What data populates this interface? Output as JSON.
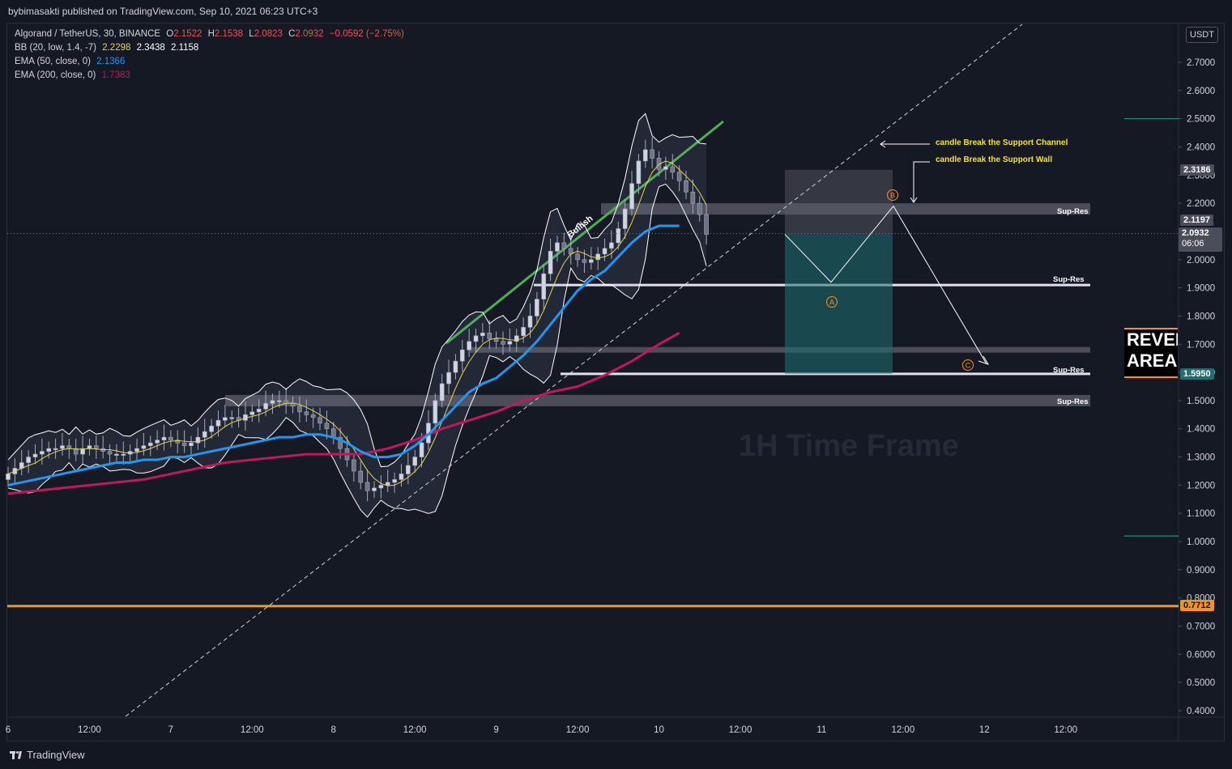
{
  "header": {
    "published": "bybimasakti published on TradingView.com, Sep 10, 2021 06:23 UTC+3"
  },
  "legend": {
    "symbol": "Algorand / TetherUS, 30, BINANCE",
    "o_label": "O",
    "o": "2.1522",
    "h_label": "H",
    "h": "2.1538",
    "l_label": "L",
    "l": "2.0823",
    "c_label": "C",
    "c": "2.0932",
    "change": "−0.0592 (−2.75%)",
    "bb_label": "BB (20, low, 1.4, -7)",
    "bb_vals": [
      "2.2298",
      "2.3438",
      "2.1158"
    ],
    "ema50_label": "EMA (50, close, 0)",
    "ema50_val": "2.1366",
    "ema200_label": "EMA (200, close, 0)",
    "ema200_val": "1.7383"
  },
  "currency": "USDT",
  "price_tags": {
    "top": "2.3186",
    "ema": "2.1197",
    "last": "2.0932",
    "countdown": "06:06",
    "support": "1.5950",
    "orange": "0.7712"
  },
  "rev_area": [
    "REVERSAL",
    "AREA"
  ],
  "annotations": {
    "channel": "candle Break the Support Channel",
    "wall": "candle Break the Support Wall",
    "bullish": "Bullish",
    "timeframe": "1H Time Frame",
    "supres": "Sup-Res",
    "wave_a": "A",
    "wave_b": "B",
    "wave_c": "C"
  },
  "footer": {
    "brand": "TradingView"
  },
  "colors": {
    "background": "#131722",
    "ema50": "#2196f3",
    "ema200": "#c2185b",
    "bb_basis": "#e6d55a",
    "bull_line": "#4caf50",
    "orange": "#f7931a",
    "teal": "#26a69a"
  },
  "chart_data": {
    "type": "candlestick",
    "symbol": "Algorand / TetherUS",
    "timeframe": "30",
    "exchange": "BINANCE",
    "y_axis": {
      "ticks": [
        "2.7000",
        "2.6000",
        "2.5000",
        "2.4000",
        "2.3000",
        "2.2000",
        "2.1000",
        "2.0000",
        "1.9000",
        "1.8000",
        "1.7000",
        "1.6000",
        "1.5000",
        "1.4000",
        "1.3000",
        "1.2000",
        "1.1000",
        "1.0000",
        "0.9000",
        "0.8000",
        "0.7000",
        "0.6000",
        "0.5000",
        "0.4000"
      ],
      "ylim": [
        0.37,
        2.82
      ]
    },
    "x_axis": {
      "ticks": [
        ":00",
        "6",
        "12:00",
        "7",
        "12:00",
        "8",
        "12:00",
        "9",
        "12:00",
        "10",
        "12:00",
        "11",
        "12:00",
        "12",
        "12:00"
      ],
      "tick_index": [
        -24,
        0,
        12,
        24,
        36,
        48,
        60,
        72,
        84,
        96,
        108,
        120,
        132,
        144,
        156
      ]
    },
    "close": [
      1.24,
      1.26,
      1.28,
      1.3,
      1.31,
      1.32,
      1.33,
      1.33,
      1.34,
      1.33,
      1.31,
      1.33,
      1.34,
      1.33,
      1.32,
      1.31,
      1.31,
      1.31,
      1.32,
      1.33,
      1.34,
      1.35,
      1.36,
      1.37,
      1.36,
      1.35,
      1.34,
      1.35,
      1.37,
      1.39,
      1.41,
      1.43,
      1.44,
      1.44,
      1.43,
      1.45,
      1.46,
      1.47,
      1.49,
      1.5,
      1.5,
      1.49,
      1.48,
      1.46,
      1.45,
      1.44,
      1.42,
      1.4,
      1.37,
      1.33,
      1.29,
      1.25,
      1.21,
      1.18,
      1.19,
      1.2,
      1.21,
      1.22,
      1.24,
      1.27,
      1.3,
      1.35,
      1.42,
      1.5,
      1.56,
      1.6,
      1.64,
      1.68,
      1.71,
      1.73,
      1.74,
      1.72,
      1.71,
      1.7,
      1.71,
      1.73,
      1.76,
      1.8,
      1.86,
      1.95,
      2.03,
      2.06,
      2.04,
      2.02,
      2.0,
      1.99,
      2.0,
      2.02,
      2.04,
      2.06,
      2.11,
      2.18,
      2.27,
      2.35,
      2.39,
      2.36,
      2.32,
      2.33,
      2.31,
      2.28,
      2.24,
      2.2,
      2.16,
      2.09
    ],
    "ema50": [
      1.2,
      1.21,
      1.22,
      1.23,
      1.24,
      1.25,
      1.26,
      1.27,
      1.28,
      1.28,
      1.29,
      1.29,
      1.3,
      1.3,
      1.31,
      1.32,
      1.33,
      1.34,
      1.35,
      1.36,
      1.37,
      1.37,
      1.38,
      1.38,
      1.37,
      1.35,
      1.32,
      1.3,
      1.3,
      1.31,
      1.34,
      1.38,
      1.43,
      1.48,
      1.53,
      1.56,
      1.58,
      1.62,
      1.66,
      1.71,
      1.77,
      1.83,
      1.89,
      1.93,
      1.96,
      2.01,
      2.06,
      2.1,
      2.12,
      2.12
    ],
    "ema50_index": [
      0,
      2,
      4,
      6,
      8,
      10,
      12,
      14,
      16,
      18,
      20,
      22,
      24,
      26,
      28,
      30,
      32,
      34,
      36,
      38,
      40,
      42,
      44,
      46,
      48,
      50,
      52,
      54,
      56,
      58,
      60,
      62,
      64,
      66,
      68,
      70,
      72,
      74,
      76,
      78,
      80,
      82,
      84,
      86,
      88,
      90,
      92,
      94,
      96,
      99
    ],
    "ema200": [
      1.17,
      1.18,
      1.19,
      1.2,
      1.21,
      1.22,
      1.24,
      1.26,
      1.28,
      1.29,
      1.3,
      1.31,
      1.31,
      1.31,
      1.33,
      1.36,
      1.4,
      1.43,
      1.46,
      1.5,
      1.53,
      1.55,
      1.59,
      1.64,
      1.7,
      1.74
    ],
    "ema200_index": [
      0,
      4,
      8,
      12,
      16,
      20,
      24,
      28,
      32,
      36,
      40,
      44,
      48,
      52,
      56,
      60,
      64,
      68,
      72,
      76,
      80,
      84,
      88,
      92,
      96,
      99
    ],
    "levels": [
      {
        "name": "Sup-Res",
        "low": 2.16,
        "high": 2.2
      },
      {
        "name": "Sup-Res",
        "value": 1.91
      },
      {
        "name": "",
        "low": 1.67,
        "high": 1.69
      },
      {
        "name": "Sup-Res",
        "value": 1.595
      },
      {
        "name": "Sup-Res",
        "low": 1.48,
        "high": 1.52
      },
      {
        "name": "",
        "value": 0.7712
      }
    ],
    "short_position": {
      "entry": 2.09,
      "stop": 2.3186,
      "target": 1.595
    },
    "projection": [
      {
        "label": "",
        "price": 2.09
      },
      {
        "label": "A",
        "price": 1.92
      },
      {
        "label": "B",
        "price": 2.19
      },
      {
        "label": "C",
        "price": 1.63
      }
    ]
  }
}
